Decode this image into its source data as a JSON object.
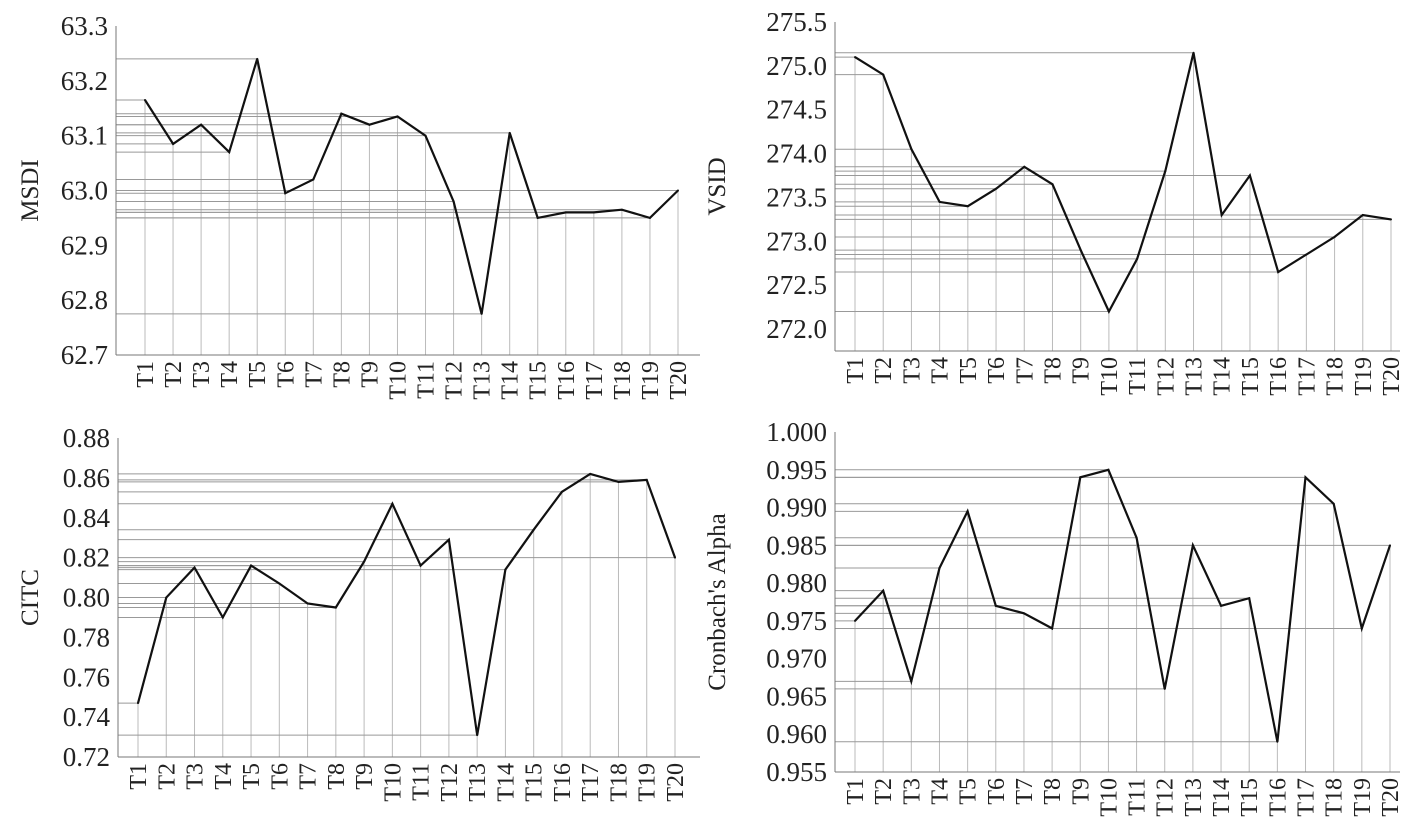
{
  "chart_data": [
    {
      "type": "line",
      "ylabel": "MSDI",
      "categories": [
        "T1",
        "T2",
        "T3",
        "T4",
        "T5",
        "T6",
        "T7",
        "T8",
        "T9",
        "T10",
        "T11",
        "T12",
        "T13",
        "T14",
        "T15",
        "T16",
        "T17",
        "T18",
        "T19",
        "T20"
      ],
      "values": [
        63.165,
        63.085,
        63.12,
        63.07,
        63.24,
        62.995,
        63.02,
        63.14,
        63.12,
        63.135,
        63.1,
        62.98,
        62.775,
        63.105,
        62.95,
        62.96,
        62.96,
        62.965,
        62.95,
        63.0
      ],
      "ylim": [
        62.7,
        63.3
      ],
      "yticks": [
        "62.7",
        "62.8",
        "62.9",
        "63.0",
        "63.1",
        "63.2",
        "63.3"
      ],
      "grid": false
    },
    {
      "type": "line",
      "ylabel": "VSID",
      "categories": [
        "T1",
        "T2",
        "T3",
        "T4",
        "T5",
        "T6",
        "T7",
        "T8",
        "T9",
        "T10",
        "T11",
        "T12",
        "T13",
        "T14",
        "T15",
        "T16",
        "T17",
        "T18",
        "T19",
        "T20"
      ],
      "values": [
        275.1,
        274.9,
        274.05,
        273.45,
        273.4,
        273.6,
        273.85,
        273.65,
        272.9,
        272.2,
        272.8,
        273.8,
        275.15,
        273.3,
        273.75,
        272.65,
        272.85,
        273.05,
        273.3,
        273.25
      ],
      "ylim": [
        271.75,
        275.5
      ],
      "yticks": [
        "272.0",
        "272.5",
        "273.0",
        "273.5",
        "274.0",
        "274.5",
        "275.0",
        "275.5"
      ],
      "grid": false
    },
    {
      "type": "line",
      "ylabel": "CITC",
      "categories": [
        "T1",
        "T2",
        "T3",
        "T4",
        "T5",
        "T6",
        "T7",
        "T8",
        "T9",
        "T10",
        "T11",
        "T12",
        "T13",
        "T14",
        "T15",
        "T16",
        "T17",
        "T18",
        "T19",
        "T20"
      ],
      "values": [
        0.747,
        0.8,
        0.815,
        0.79,
        0.816,
        0.807,
        0.797,
        0.795,
        0.818,
        0.847,
        0.816,
        0.829,
        0.731,
        0.814,
        0.834,
        0.853,
        0.862,
        0.858,
        0.859,
        0.82
      ],
      "ylim": [
        0.72,
        0.88
      ],
      "yticks": [
        "0.72",
        "0.74",
        "0.76",
        "0.78",
        "0.80",
        "0.82",
        "0.84",
        "0.86",
        "0.88"
      ],
      "grid": false
    },
    {
      "type": "line",
      "ylabel": "Cronbach's Alpha",
      "categories": [
        "T1",
        "T2",
        "T3",
        "T4",
        "T5",
        "T6",
        "T7",
        "T8",
        "T9",
        "T10",
        "T11",
        "T12",
        "T13",
        "T14",
        "T15",
        "T16",
        "T17",
        "T18",
        "T19",
        "T20"
      ],
      "values": [
        0.975,
        0.979,
        0.967,
        0.982,
        0.9895,
        0.977,
        0.976,
        0.974,
        0.994,
        0.995,
        0.986,
        0.966,
        0.985,
        0.977,
        0.978,
        0.959,
        0.994,
        0.9905,
        0.974,
        0.985
      ],
      "ylim": [
        0.955,
        1.0
      ],
      "yticks": [
        "0.955",
        "0.960",
        "0.965",
        "0.970",
        "0.975",
        "0.980",
        "0.985",
        "0.990",
        "0.995",
        "1.000"
      ],
      "grid": false
    }
  ]
}
